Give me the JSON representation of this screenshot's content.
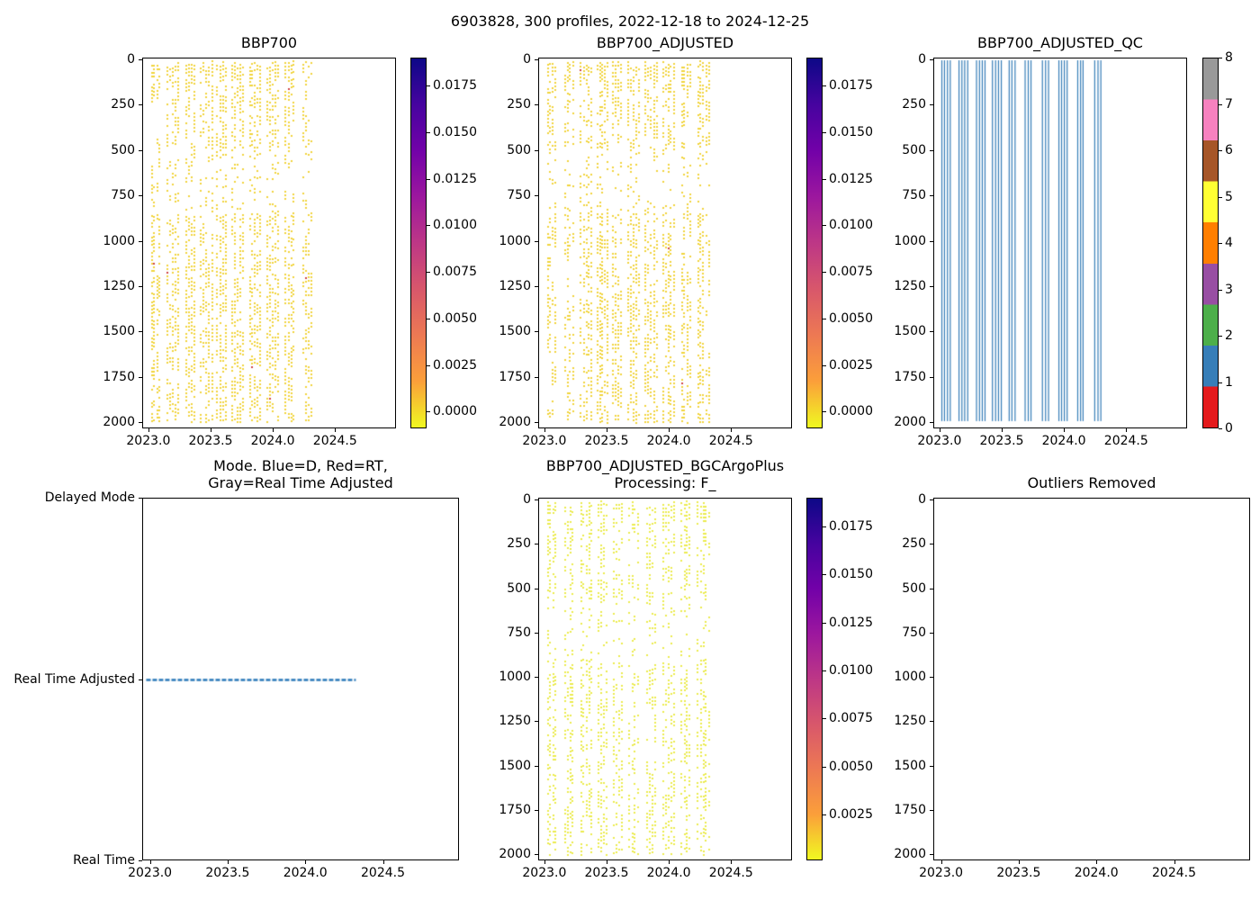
{
  "figure": {
    "suptitle": "6903828, 300 profiles, 2022-12-18 to 2024-12-25"
  },
  "chart_data": [
    {
      "id": "bbp700",
      "type": "scatter",
      "title": "BBP700",
      "xlim": [
        2022.95,
        2024.99
      ],
      "ylim": [
        -10,
        2035
      ],
      "x_ticks": [
        {
          "v": 2023.0,
          "label": "2023.0"
        },
        {
          "v": 2023.5,
          "label": "2023.5"
        },
        {
          "v": 2024.0,
          "label": "2024.0"
        },
        {
          "v": 2024.5,
          "label": "2024.5"
        }
      ],
      "y_ticks": [
        {
          "v": 0,
          "label": "0"
        },
        {
          "v": 250,
          "label": "250"
        },
        {
          "v": 500,
          "label": "500"
        },
        {
          "v": 750,
          "label": "750"
        },
        {
          "v": 1000,
          "label": "1000"
        },
        {
          "v": 1250,
          "label": "1250"
        },
        {
          "v": 1500,
          "label": "1500"
        },
        {
          "v": 1750,
          "label": "1750"
        },
        {
          "v": 2000,
          "label": "2000"
        }
      ],
      "profile_times": [
        2023.05,
        2023.19,
        2023.33,
        2023.46,
        2023.58,
        2023.71,
        2023.85,
        2023.99,
        2024.13,
        2024.27
      ],
      "depth_range": [
        0,
        2000
      ],
      "marker_color": "#f1d43c",
      "outlier_color": "#cf4444",
      "outlier_rate": 0.0015,
      "density": 0.85,
      "sparse_band": [
        480,
        840
      ],
      "seed": 101,
      "colorbar": {
        "colormap": "plasma_r",
        "vmin": -0.0009,
        "vmax": 0.019,
        "ticks": [
          {
            "v": 0.0,
            "label": "0.0000"
          },
          {
            "v": 0.0025,
            "label": "0.0025"
          },
          {
            "v": 0.005,
            "label": "0.0050"
          },
          {
            "v": 0.0075,
            "label": "0.0075"
          },
          {
            "v": 0.01,
            "label": "0.0100"
          },
          {
            "v": 0.0125,
            "label": "0.0125"
          },
          {
            "v": 0.015,
            "label": "0.0150"
          },
          {
            "v": 0.0175,
            "label": "0.0175"
          }
        ],
        "stops_bottom_to_top": [
          "#f0f921",
          "#fb9f3a",
          "#ed7953",
          "#d8576b",
          "#bd3786",
          "#9c179e",
          "#7201a8",
          "#46039f",
          "#0d0887"
        ]
      }
    },
    {
      "id": "bbp700-adjusted",
      "type": "scatter",
      "title": "BBP700_ADJUSTED",
      "xlim": [
        2022.95,
        2024.99
      ],
      "ylim": [
        -10,
        2035
      ],
      "x_ticks": [
        {
          "v": 2023.0,
          "label": "2023.0"
        },
        {
          "v": 2023.5,
          "label": "2023.5"
        },
        {
          "v": 2024.0,
          "label": "2024.0"
        },
        {
          "v": 2024.5,
          "label": "2024.5"
        }
      ],
      "y_ticks": [
        {
          "v": 0,
          "label": "0"
        },
        {
          "v": 250,
          "label": "250"
        },
        {
          "v": 500,
          "label": "500"
        },
        {
          "v": 750,
          "label": "750"
        },
        {
          "v": 1000,
          "label": "1000"
        },
        {
          "v": 1250,
          "label": "1250"
        },
        {
          "v": 1500,
          "label": "1500"
        },
        {
          "v": 1750,
          "label": "1750"
        },
        {
          "v": 2000,
          "label": "2000"
        }
      ],
      "profile_times": [
        2023.05,
        2023.19,
        2023.33,
        2023.46,
        2023.58,
        2023.71,
        2023.85,
        2023.99,
        2024.13,
        2024.27
      ],
      "depth_range": [
        0,
        2000
      ],
      "marker_color": "#f1d43c",
      "outlier_color": "#cf4444",
      "outlier_rate": 0.0007,
      "density": 0.85,
      "sparse_band": [
        480,
        840
      ],
      "seed": 202,
      "colorbar": {
        "colormap": "plasma_r",
        "vmin": -0.0009,
        "vmax": 0.019,
        "ticks": [
          {
            "v": 0.0,
            "label": "0.0000"
          },
          {
            "v": 0.0025,
            "label": "0.0025"
          },
          {
            "v": 0.005,
            "label": "0.0050"
          },
          {
            "v": 0.0075,
            "label": "0.0075"
          },
          {
            "v": 0.01,
            "label": "0.0100"
          },
          {
            "v": 0.0125,
            "label": "0.0125"
          },
          {
            "v": 0.015,
            "label": "0.0150"
          },
          {
            "v": 0.0175,
            "label": "0.0175"
          }
        ],
        "stops_bottom_to_top": [
          "#f0f921",
          "#fb9f3a",
          "#ed7953",
          "#d8576b",
          "#bd3786",
          "#9c179e",
          "#7201a8",
          "#46039f",
          "#0d0887"
        ]
      }
    },
    {
      "id": "bbp700-adjusted-qc",
      "type": "qc-lines",
      "title": "BBP700_ADJUSTED_QC",
      "xlim": [
        2022.95,
        2024.99
      ],
      "ylim": [
        -10,
        2035
      ],
      "x_ticks": [
        {
          "v": 2023.0,
          "label": "2023.0"
        },
        {
          "v": 2023.5,
          "label": "2023.5"
        },
        {
          "v": 2024.0,
          "label": "2024.0"
        },
        {
          "v": 2024.5,
          "label": "2024.5"
        }
      ],
      "y_ticks": [
        {
          "v": 0,
          "label": "0"
        },
        {
          "v": 250,
          "label": "250"
        },
        {
          "v": 500,
          "label": "500"
        },
        {
          "v": 750,
          "label": "750"
        },
        {
          "v": 1000,
          "label": "1000"
        },
        {
          "v": 1250,
          "label": "1250"
        },
        {
          "v": 1500,
          "label": "1500"
        },
        {
          "v": 1750,
          "label": "1750"
        },
        {
          "v": 2000,
          "label": "2000"
        }
      ],
      "profile_times": [
        2023.05,
        2023.19,
        2023.33,
        2023.46,
        2023.58,
        2023.71,
        2023.85,
        2023.99,
        2024.13,
        2024.27
      ],
      "depth_range": [
        0,
        1990
      ],
      "qc_value": 1,
      "line_color": "#377eb8",
      "seed": 303,
      "colorbar": {
        "colormap": "Set1 discrete",
        "vmin": 0,
        "vmax": 8,
        "ticks": [
          {
            "v": 0,
            "label": "0"
          },
          {
            "v": 1,
            "label": "1"
          },
          {
            "v": 2,
            "label": "2"
          },
          {
            "v": 3,
            "label": "3"
          },
          {
            "v": 4,
            "label": "4"
          },
          {
            "v": 5,
            "label": "5"
          },
          {
            "v": 6,
            "label": "6"
          },
          {
            "v": 7,
            "label": "7"
          },
          {
            "v": 8,
            "label": "8"
          }
        ],
        "segment_colors_bottom_to_top": [
          "#e41a1c",
          "#377eb8",
          "#4daf4a",
          "#984ea3",
          "#ff7f00",
          "#ffff33",
          "#a65628",
          "#f781bf",
          "#999999"
        ]
      }
    },
    {
      "id": "mode",
      "type": "line",
      "title_lines": [
        "Mode. Blue=D, Red=RT,",
        "Gray=Real Time Adjusted"
      ],
      "xlim": [
        2022.95,
        2024.99
      ],
      "ylim": [
        0,
        1
      ],
      "x_ticks": [
        {
          "v": 2023.0,
          "label": "2023.0"
        },
        {
          "v": 2023.5,
          "label": "2023.5"
        },
        {
          "v": 2024.0,
          "label": "2024.0"
        },
        {
          "v": 2024.5,
          "label": "2024.5"
        }
      ],
      "y_ticks": [
        {
          "v": 0,
          "label": "Delayed Mode"
        },
        {
          "v": 0.5,
          "label": "Real Time Adjusted"
        },
        {
          "v": 1,
          "label": "Real Time"
        }
      ],
      "series": [
        {
          "name": "mode",
          "value": "Real Time Adjusted",
          "y": 0.5,
          "x_start": 2022.97,
          "x_end": 2024.32,
          "color": "#2b79b9",
          "style": "dashed",
          "linewidth": 2.6
        }
      ]
    },
    {
      "id": "bbp700-adjusted-bgcargoplus",
      "type": "scatter",
      "title_lines": [
        "BBP700_ADJUSTED_BGCArgoPlus",
        "Processing: F_"
      ],
      "xlim": [
        2022.95,
        2024.99
      ],
      "ylim": [
        -10,
        2035
      ],
      "x_ticks": [
        {
          "v": 2023.0,
          "label": "2023.0"
        },
        {
          "v": 2023.5,
          "label": "2023.5"
        },
        {
          "v": 2024.0,
          "label": "2024.0"
        },
        {
          "v": 2024.5,
          "label": "2024.5"
        }
      ],
      "y_ticks": [
        {
          "v": 0,
          "label": "0"
        },
        {
          "v": 250,
          "label": "250"
        },
        {
          "v": 500,
          "label": "500"
        },
        {
          "v": 750,
          "label": "750"
        },
        {
          "v": 1000,
          "label": "1000"
        },
        {
          "v": 1250,
          "label": "1250"
        },
        {
          "v": 1500,
          "label": "1500"
        },
        {
          "v": 1750,
          "label": "1750"
        },
        {
          "v": 2000,
          "label": "2000"
        }
      ],
      "profile_times": [
        2023.05,
        2023.19,
        2023.33,
        2023.46,
        2023.58,
        2023.71,
        2023.85,
        2023.99,
        2024.13,
        2024.27
      ],
      "depth_range": [
        0,
        2000
      ],
      "marker_color": "#ebeb4e",
      "outlier_color": "#cf4444",
      "outlier_rate": 0.0003,
      "density": 0.72,
      "sparse_band": [
        550,
        900
      ],
      "seed": 505,
      "colorbar": {
        "colormap": "plasma_r",
        "vmin": 0.0001,
        "vmax": 0.019,
        "ticks": [
          {
            "v": 0.0025,
            "label": "0.0025"
          },
          {
            "v": 0.005,
            "label": "0.0050"
          },
          {
            "v": 0.0075,
            "label": "0.0075"
          },
          {
            "v": 0.01,
            "label": "0.0100"
          },
          {
            "v": 0.0125,
            "label": "0.0125"
          },
          {
            "v": 0.015,
            "label": "0.0150"
          },
          {
            "v": 0.0175,
            "label": "0.0175"
          }
        ],
        "stops_bottom_to_top": [
          "#f0f921",
          "#fb9f3a",
          "#ed7953",
          "#d8576b",
          "#bd3786",
          "#9c179e",
          "#7201a8",
          "#46039f",
          "#0d0887"
        ]
      }
    },
    {
      "id": "outliers-removed",
      "type": "empty",
      "title": "Outliers Removed",
      "xlim": [
        2022.95,
        2024.99
      ],
      "ylim": [
        -10,
        2035
      ],
      "x_ticks": [
        {
          "v": 2023.0,
          "label": "2023.0"
        },
        {
          "v": 2023.5,
          "label": "2023.5"
        },
        {
          "v": 2024.0,
          "label": "2024.0"
        },
        {
          "v": 2024.5,
          "label": "2024.5"
        }
      ],
      "y_ticks": [
        {
          "v": 0,
          "label": "0"
        },
        {
          "v": 250,
          "label": "250"
        },
        {
          "v": 500,
          "label": "500"
        },
        {
          "v": 750,
          "label": "750"
        },
        {
          "v": 1000,
          "label": "1000"
        },
        {
          "v": 1250,
          "label": "1250"
        },
        {
          "v": 1500,
          "label": "1500"
        },
        {
          "v": 1750,
          "label": "1750"
        },
        {
          "v": 2000,
          "label": "2000"
        }
      ]
    }
  ]
}
